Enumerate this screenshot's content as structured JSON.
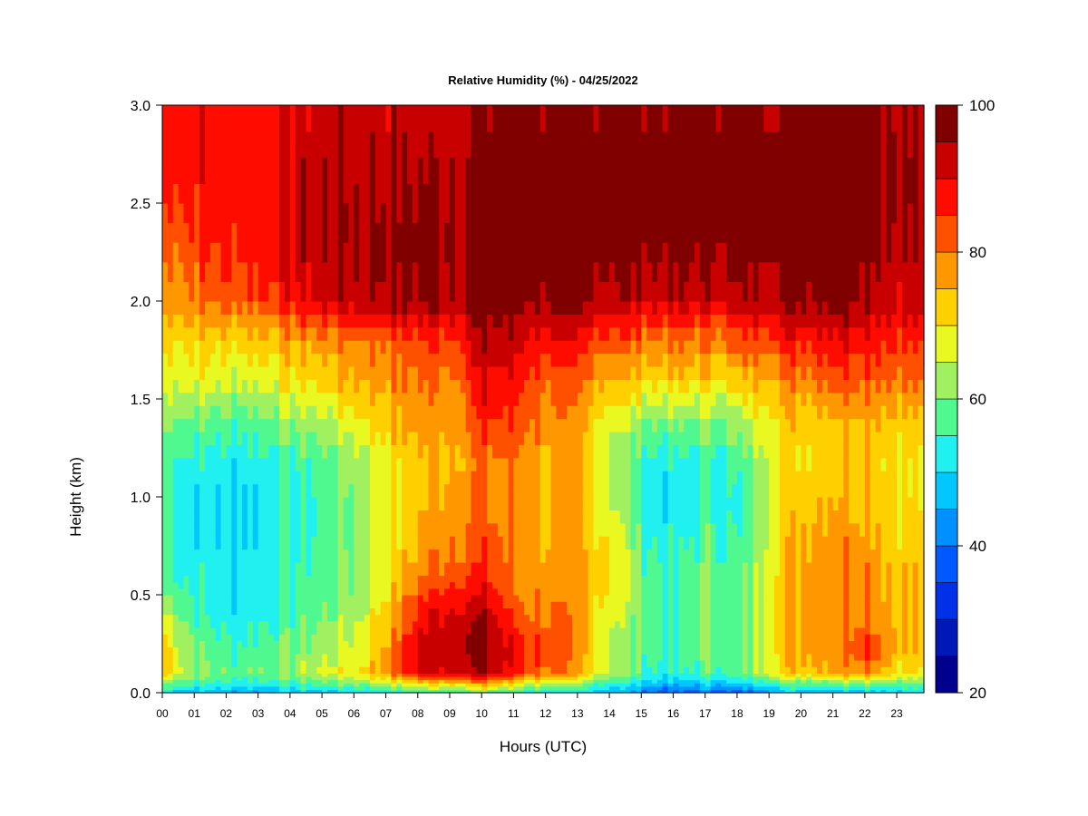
{
  "chart_data": {
    "type": "heatmap",
    "title": "Relative Humidity (%) - 04/25/2022",
    "xlabel": "Hours (UTC)",
    "ylabel": "Height (km)",
    "xlim": [
      0,
      23.85
    ],
    "ylim": [
      0.0,
      3.0
    ],
    "x_ticks": [
      "00",
      "01",
      "02",
      "03",
      "04",
      "05",
      "06",
      "07",
      "08",
      "09",
      "10",
      "11",
      "12",
      "13",
      "14",
      "15",
      "16",
      "17",
      "18",
      "19",
      "20",
      "21",
      "22",
      "23"
    ],
    "y_ticks": [
      "0.0",
      "0.5",
      "1.0",
      "1.5",
      "2.0",
      "2.5",
      "3.0"
    ],
    "colorbar": {
      "min": 20,
      "max": 100,
      "step": 5,
      "tick_labels": [
        "20",
        "40",
        "60",
        "80",
        "100"
      ],
      "colors": [
        "#00008f",
        "#0018b8",
        "#0030e8",
        "#0058ff",
        "#0090ff",
        "#00c8ff",
        "#20f0f0",
        "#50f890",
        "#a0f060",
        "#e8f820",
        "#ffd000",
        "#ff9800",
        "#ff5000",
        "#ff0c00",
        "#c80000",
        "#800000"
      ]
    },
    "heights_km": [
      0.0,
      0.05,
      0.1,
      0.2,
      0.3,
      0.4,
      0.5,
      0.6,
      0.8,
      1.0,
      1.2,
      1.4,
      1.6,
      1.8,
      2.0,
      2.3,
      2.6,
      3.0
    ],
    "hours": [
      0,
      1,
      2,
      3,
      4,
      5,
      6,
      7,
      8,
      9,
      10,
      11,
      12,
      13,
      14,
      15,
      16,
      17,
      18,
      19,
      20,
      21,
      22,
      23
    ],
    "rh_values": [
      [
        50,
        62,
        72,
        72,
        70,
        66,
        60,
        58,
        56,
        56,
        58,
        62,
        68,
        72,
        78,
        82,
        88,
        90
      ],
      [
        48,
        56,
        62,
        60,
        58,
        56,
        54,
        54,
        52,
        52,
        54,
        60,
        68,
        72,
        80,
        85,
        88,
        88
      ],
      [
        46,
        54,
        58,
        56,
        54,
        52,
        52,
        52,
        50,
        50,
        52,
        58,
        66,
        72,
        82,
        87,
        88,
        88
      ],
      [
        45,
        54,
        60,
        58,
        56,
        54,
        54,
        54,
        52,
        52,
        54,
        60,
        68,
        74,
        84,
        88,
        88,
        88
      ],
      [
        48,
        56,
        62,
        60,
        58,
        56,
        56,
        56,
        54,
        54,
        56,
        62,
        70,
        76,
        88,
        92,
        92,
        90
      ],
      [
        48,
        58,
        66,
        64,
        62,
        60,
        58,
        58,
        56,
        56,
        58,
        64,
        72,
        78,
        92,
        95,
        95,
        92
      ],
      [
        50,
        62,
        70,
        68,
        66,
        64,
        62,
        62,
        62,
        62,
        64,
        70,
        76,
        80,
        94,
        96,
        95,
        92
      ],
      [
        52,
        66,
        78,
        78,
        76,
        74,
        72,
        70,
        68,
        68,
        70,
        74,
        78,
        82,
        96,
        97,
        95,
        92
      ],
      [
        55,
        72,
        90,
        92,
        90,
        88,
        84,
        80,
        76,
        74,
        74,
        78,
        80,
        84,
        96,
        97,
        96,
        92
      ],
      [
        56,
        74,
        92,
        95,
        95,
        92,
        88,
        84,
        80,
        78,
        76,
        78,
        80,
        86,
        96,
        97,
        96,
        92
      ],
      [
        58,
        78,
        94,
        97,
        97,
        94,
        90,
        86,
        82,
        80,
        80,
        86,
        90,
        94,
        98,
        98,
        97,
        95
      ],
      [
        54,
        70,
        86,
        88,
        86,
        82,
        80,
        78,
        78,
        78,
        80,
        84,
        88,
        92,
        98,
        99,
        98,
        96
      ],
      [
        50,
        64,
        80,
        84,
        82,
        80,
        78,
        78,
        76,
        76,
        76,
        78,
        82,
        88,
        96,
        99,
        98,
        97
      ],
      [
        50,
        62,
        74,
        76,
        76,
        76,
        76,
        76,
        74,
        74,
        74,
        76,
        80,
        86,
        96,
        99,
        99,
        97
      ],
      [
        46,
        56,
        64,
        66,
        66,
        68,
        70,
        72,
        70,
        66,
        64,
        68,
        76,
        84,
        94,
        99,
        99,
        97
      ],
      [
        40,
        50,
        56,
        58,
        58,
        58,
        58,
        58,
        56,
        54,
        56,
        62,
        72,
        80,
        92,
        98,
        99,
        97
      ],
      [
        36,
        46,
        52,
        54,
        54,
        54,
        54,
        54,
        52,
        50,
        52,
        60,
        72,
        80,
        92,
        98,
        99,
        97
      ],
      [
        40,
        50,
        58,
        60,
        60,
        60,
        60,
        60,
        58,
        56,
        56,
        62,
        72,
        80,
        92,
        98,
        99,
        97
      ],
      [
        36,
        48,
        56,
        56,
        56,
        56,
        56,
        56,
        54,
        52,
        56,
        62,
        72,
        82,
        92,
        98,
        99,
        97
      ],
      [
        46,
        58,
        70,
        72,
        72,
        72,
        72,
        72,
        70,
        68,
        70,
        72,
        78,
        86,
        96,
        99,
        99,
        97
      ],
      [
        48,
        60,
        74,
        78,
        78,
        78,
        78,
        78,
        76,
        74,
        72,
        74,
        80,
        88,
        97,
        99,
        99,
        98
      ],
      [
        48,
        60,
        76,
        80,
        80,
        80,
        80,
        80,
        78,
        76,
        74,
        76,
        84,
        90,
        98,
        99,
        99,
        98
      ],
      [
        48,
        62,
        80,
        86,
        84,
        82,
        80,
        80,
        78,
        76,
        74,
        78,
        84,
        90,
        96,
        99,
        99,
        98
      ],
      [
        50,
        60,
        70,
        74,
        74,
        74,
        74,
        74,
        72,
        70,
        70,
        74,
        80,
        86,
        92,
        94,
        96,
        94
      ]
    ]
  }
}
